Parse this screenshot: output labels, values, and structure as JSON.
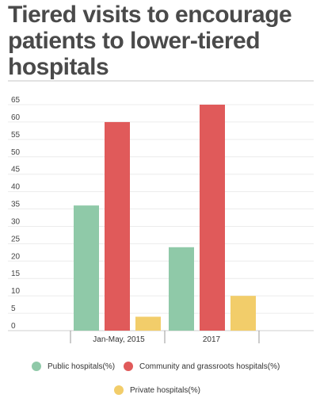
{
  "title": "Tiered visits to encourage patients to lower-tiered hospitals",
  "chart_data": {
    "type": "bar",
    "categories": [
      "Jan-May, 2015",
      "2017"
    ],
    "series": [
      {
        "name": "Public hospitals(%)",
        "color": "#8fc9a8",
        "values": [
          36,
          24
        ]
      },
      {
        "name": "Community and grassroots hospitals(%)",
        "color": "#e05a5a",
        "values": [
          60,
          65
        ]
      },
      {
        "name": "Private hospitals(%)",
        "color": "#f2cd6a",
        "values": [
          4,
          10
        ]
      }
    ],
    "yticks": [
      0,
      5,
      10,
      15,
      20,
      25,
      30,
      35,
      40,
      45,
      50,
      55,
      60,
      65
    ],
    "ylim": [
      0,
      65
    ],
    "grid": true,
    "legend_position": "bottom"
  }
}
